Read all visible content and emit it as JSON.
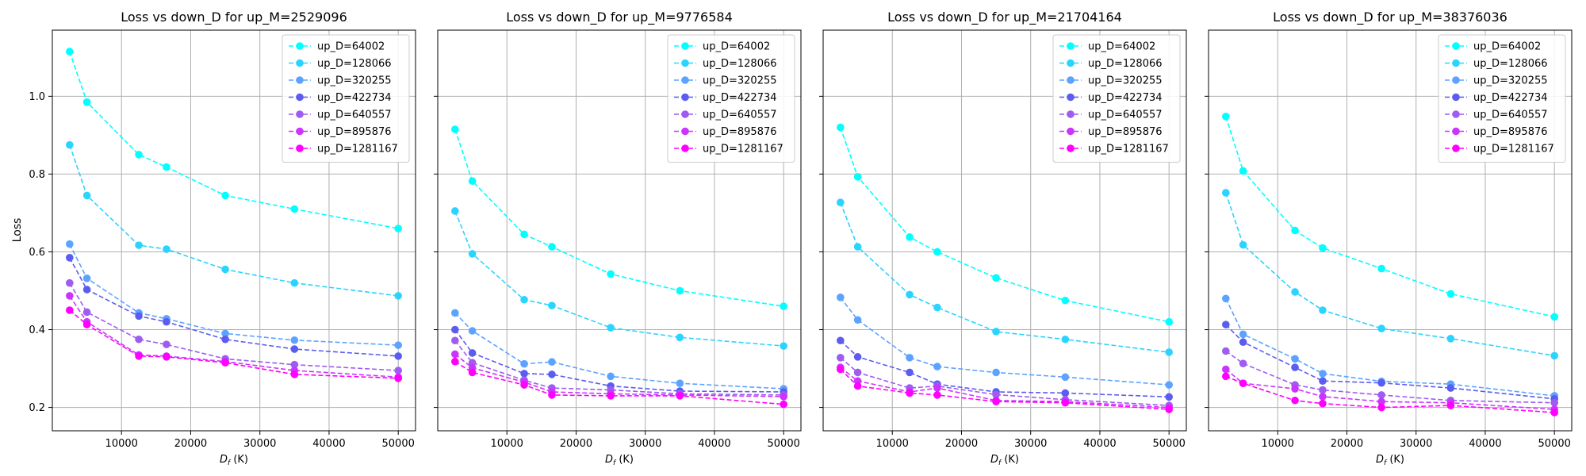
{
  "figure": {
    "shared_y": true,
    "ylabel": "Loss",
    "xlabel": "D_f (K)",
    "xlabel_main": "D",
    "xlabel_sub": "f",
    "xlabel_unit": " (K)",
    "legend_loc": "upper right"
  },
  "colors": [
    "#00ffff",
    "#2bd4ff",
    "#5ca3ff",
    "#5c5cf0",
    "#9e5cf0",
    "#cc33ff",
    "#ff00ff"
  ],
  "chart_data": [
    {
      "type": "line",
      "title": "Loss vs down_D for up_M=2529096",
      "xlabel": "D_f (K)",
      "ylabel": "Loss",
      "x": [
        2500,
        5000,
        12500,
        16500,
        25000,
        35000,
        50000
      ],
      "xlim": [
        0,
        52500
      ],
      "ylim": [
        0.14,
        1.17
      ],
      "xticks": [
        10000,
        20000,
        30000,
        40000,
        50000
      ],
      "yticks": [
        0.2,
        0.4,
        0.6,
        0.8,
        1.0
      ],
      "ytick_labels": [
        "0.2",
        "0.4",
        "0.6",
        "0.8",
        "1.0"
      ],
      "grid": true,
      "series": [
        {
          "name": "up_D=64002",
          "values": [
            1.115,
            0.985,
            0.85,
            0.818,
            0.745,
            0.71,
            0.66
          ]
        },
        {
          "name": "up_D=128066",
          "values": [
            0.875,
            0.745,
            0.617,
            0.607,
            0.555,
            0.52,
            0.487
          ]
        },
        {
          "name": "up_D=320255",
          "values": [
            0.62,
            0.532,
            0.443,
            0.428,
            0.39,
            0.373,
            0.36
          ]
        },
        {
          "name": "up_D=422734",
          "values": [
            0.585,
            0.503,
            0.435,
            0.42,
            0.375,
            0.35,
            0.332
          ]
        },
        {
          "name": "up_D=640557",
          "values": [
            0.52,
            0.445,
            0.375,
            0.362,
            0.325,
            0.31,
            0.295
          ]
        },
        {
          "name": "up_D=895876",
          "values": [
            0.487,
            0.42,
            0.335,
            0.332,
            0.318,
            0.295,
            0.278
          ]
        },
        {
          "name": "up_D=1281167",
          "values": [
            0.45,
            0.413,
            0.332,
            0.33,
            0.315,
            0.285,
            0.275
          ]
        }
      ]
    },
    {
      "type": "line",
      "title": "Loss vs down_D for up_M=9776584",
      "xlabel": "D_f (K)",
      "ylabel": "",
      "x": [
        2500,
        5000,
        12500,
        16500,
        25000,
        35000,
        50000
      ],
      "xlim": [
        0,
        52500
      ],
      "ylim": [
        0.14,
        1.17
      ],
      "xticks": [
        10000,
        20000,
        30000,
        40000,
        50000
      ],
      "yticks": [
        0.2,
        0.4,
        0.6,
        0.8,
        1.0
      ],
      "grid": true,
      "series": [
        {
          "name": "up_D=64002",
          "values": [
            0.915,
            0.782,
            0.645,
            0.613,
            0.543,
            0.5,
            0.46
          ]
        },
        {
          "name": "up_D=128066",
          "values": [
            0.705,
            0.595,
            0.477,
            0.462,
            0.405,
            0.38,
            0.358
          ]
        },
        {
          "name": "up_D=320255",
          "values": [
            0.443,
            0.397,
            0.312,
            0.317,
            0.28,
            0.262,
            0.248
          ]
        },
        {
          "name": "up_D=422734",
          "values": [
            0.4,
            0.34,
            0.287,
            0.285,
            0.255,
            0.242,
            0.24
          ]
        },
        {
          "name": "up_D=640557",
          "values": [
            0.372,
            0.315,
            0.27,
            0.25,
            0.245,
            0.235,
            0.232
          ]
        },
        {
          "name": "up_D=895876",
          "values": [
            0.337,
            0.302,
            0.265,
            0.24,
            0.235,
            0.232,
            0.228
          ]
        },
        {
          "name": "up_D=1281167",
          "values": [
            0.318,
            0.29,
            0.258,
            0.232,
            0.23,
            0.23,
            0.208
          ]
        }
      ]
    },
    {
      "type": "line",
      "title": "Loss vs down_D for up_M=21704164",
      "xlabel": "D_f (K)",
      "ylabel": "",
      "x": [
        2500,
        5000,
        12500,
        16500,
        25000,
        35000,
        50000
      ],
      "xlim": [
        0,
        52500
      ],
      "ylim": [
        0.14,
        1.17
      ],
      "xticks": [
        10000,
        20000,
        30000,
        40000,
        50000
      ],
      "yticks": [
        0.2,
        0.4,
        0.6,
        0.8,
        1.0
      ],
      "grid": true,
      "series": [
        {
          "name": "up_D=64002",
          "values": [
            0.92,
            0.793,
            0.638,
            0.6,
            0.533,
            0.475,
            0.42
          ]
        },
        {
          "name": "up_D=128066",
          "values": [
            0.727,
            0.613,
            0.49,
            0.457,
            0.395,
            0.375,
            0.342
          ]
        },
        {
          "name": "up_D=320255",
          "values": [
            0.483,
            0.425,
            0.328,
            0.305,
            0.29,
            0.278,
            0.258
          ]
        },
        {
          "name": "up_D=422734",
          "values": [
            0.372,
            0.33,
            0.29,
            0.26,
            0.24,
            0.237,
            0.227
          ]
        },
        {
          "name": "up_D=640557",
          "values": [
            0.328,
            0.29,
            0.25,
            0.255,
            0.233,
            0.22,
            0.205
          ]
        },
        {
          "name": "up_D=895876",
          "values": [
            0.303,
            0.268,
            0.24,
            0.25,
            0.218,
            0.215,
            0.2
          ]
        },
        {
          "name": "up_D=1281167",
          "values": [
            0.298,
            0.255,
            0.237,
            0.232,
            0.215,
            0.212,
            0.195
          ]
        }
      ]
    },
    {
      "type": "line",
      "title": "Loss vs down_D for up_M=38376036",
      "xlabel": "D_f (K)",
      "ylabel": "",
      "x": [
        2500,
        5000,
        12500,
        16500,
        25000,
        35000,
        50000
      ],
      "xlim": [
        0,
        52500
      ],
      "ylim": [
        0.14,
        1.17
      ],
      "xticks": [
        10000,
        20000,
        30000,
        40000,
        50000
      ],
      "yticks": [
        0.2,
        0.4,
        0.6,
        0.8,
        1.0
      ],
      "grid": true,
      "series": [
        {
          "name": "up_D=64002",
          "values": [
            0.948,
            0.808,
            0.655,
            0.61,
            0.557,
            0.492,
            0.433
          ]
        },
        {
          "name": "up_D=128066",
          "values": [
            0.752,
            0.618,
            0.497,
            0.45,
            0.403,
            0.377,
            0.333
          ]
        },
        {
          "name": "up_D=320255",
          "values": [
            0.48,
            0.388,
            0.325,
            0.287,
            0.267,
            0.26,
            0.23
          ]
        },
        {
          "name": "up_D=422734",
          "values": [
            0.413,
            0.368,
            0.303,
            0.268,
            0.263,
            0.25,
            0.222
          ]
        },
        {
          "name": "up_D=640557",
          "values": [
            0.345,
            0.313,
            0.258,
            0.245,
            0.232,
            0.218,
            0.212
          ]
        },
        {
          "name": "up_D=895876",
          "values": [
            0.298,
            0.262,
            0.248,
            0.228,
            0.215,
            0.212,
            0.195
          ]
        },
        {
          "name": "up_D=1281167",
          "values": [
            0.28,
            0.262,
            0.218,
            0.21,
            0.2,
            0.205,
            0.187
          ]
        }
      ]
    }
  ]
}
